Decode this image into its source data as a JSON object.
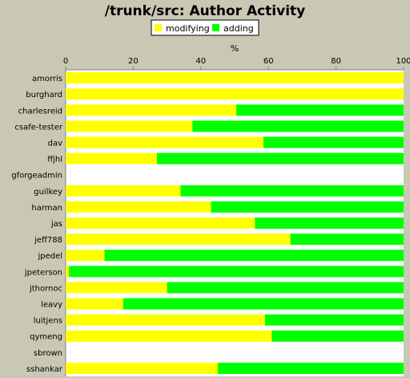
{
  "chart_data": {
    "type": "bar",
    "orientation": "horizontal",
    "stacked": true,
    "title": "/trunk/src: Author Activity",
    "xlabel": "%",
    "ylabel": "",
    "xlim": [
      0,
      100
    ],
    "xticks": [
      "0",
      "20",
      "40",
      "60",
      "80",
      "100"
    ],
    "legend_position": "top",
    "grid": false,
    "categories": [
      "amorris",
      "burghard",
      "charlesreid",
      "csafe-tester",
      "dav",
      "ffjhl",
      "gforgeadmin",
      "guilkey",
      "harman",
      "jas",
      "jeff788",
      "jpedel",
      "jpeterson",
      "jthornoc",
      "leavy",
      "luitjens",
      "qymeng",
      "sbrown",
      "sshankar"
    ],
    "series": [
      {
        "name": "modifying",
        "color": "#ffff00",
        "values": [
          100,
          100,
          50.5,
          37.5,
          58.5,
          27,
          0,
          34,
          43,
          56,
          66.5,
          11.5,
          1,
          30,
          17,
          59,
          61,
          0,
          45
        ]
      },
      {
        "name": "adding",
        "color": "#00ff00",
        "values": [
          0,
          0,
          49.5,
          62.5,
          41.5,
          73,
          0,
          66,
          57,
          44,
          33.5,
          88.5,
          99,
          70,
          83,
          41,
          39,
          0,
          55
        ]
      }
    ]
  }
}
